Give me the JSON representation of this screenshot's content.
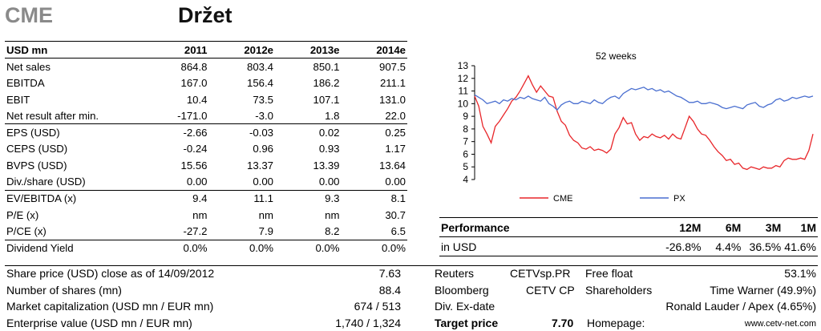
{
  "header": {
    "ticker": "CME",
    "rating": "Držet"
  },
  "financials": {
    "columns": [
      "USD mn",
      "2011",
      "2012e",
      "2013e",
      "2014e"
    ],
    "groups": [
      [
        [
          "Net sales",
          "864.8",
          "803.4",
          "850.1",
          "907.5"
        ],
        [
          "EBITDA",
          "167.0",
          "156.4",
          "186.2",
          "211.1"
        ],
        [
          "EBIT",
          "10.4",
          "73.5",
          "107.1",
          "131.0"
        ],
        [
          "Net result after min.",
          "-171.0",
          "-3.0",
          "1.8",
          "22.0"
        ]
      ],
      [
        [
          "EPS (USD)",
          "-2.66",
          "-0.03",
          "0.02",
          "0.25"
        ],
        [
          "CEPS (USD)",
          "-0.24",
          "0.96",
          "0.93",
          "1.17"
        ],
        [
          "BVPS (USD)",
          "15.56",
          "13.37",
          "13.39",
          "13.64"
        ],
        [
          "Div./share (USD)",
          "0.00",
          "0.00",
          "0.00",
          "0.00"
        ]
      ],
      [
        [
          "EV/EBITDA (x)",
          "9.4",
          "11.1",
          "9.3",
          "8.1"
        ],
        [
          "P/E (x)",
          "nm",
          "nm",
          "nm",
          "30.7"
        ],
        [
          "P/CE (x)",
          "-27.2",
          "7.9",
          "8.2",
          "6.5"
        ]
      ],
      [
        [
          "Dividend Yield",
          "0.0%",
          "0.0%",
          "0.0%",
          "0.0%"
        ]
      ]
    ]
  },
  "chart_data": {
    "type": "line",
    "title": "52 weeks",
    "ylim": [
      4,
      13
    ],
    "yticks": [
      "4",
      "5",
      "6",
      "7",
      "8",
      "9",
      "10",
      "11",
      "12",
      "13"
    ],
    "series": [
      {
        "name": "CME",
        "color": "#e8262a",
        "values": [
          10.6,
          9.8,
          8.2,
          7.6,
          6.9,
          8.2,
          8.6,
          9.1,
          9.6,
          10.2,
          10.5,
          11.0,
          11.6,
          12.2,
          11.5,
          10.9,
          11.4,
          11.0,
          10.6,
          10.5,
          9.4,
          8.6,
          8.3,
          7.5,
          7.1,
          6.9,
          6.5,
          6.4,
          6.6,
          6.3,
          6.4,
          6.3,
          6.1,
          6.4,
          7.6,
          8.1,
          8.9,
          8.4,
          8.5,
          7.6,
          7.1,
          7.4,
          7.3,
          7.6,
          7.4,
          7.3,
          7.5,
          7.2,
          7.6,
          7.3,
          7.2,
          8.1,
          9.0,
          8.6,
          8.0,
          7.6,
          7.5,
          7.1,
          6.6,
          6.2,
          5.9,
          5.5,
          5.6,
          5.2,
          5.3,
          4.9,
          4.8,
          5.0,
          4.9,
          4.8,
          5.0,
          4.9,
          4.9,
          5.1,
          5.0,
          5.5,
          5.7,
          5.6,
          5.6,
          5.7,
          5.6,
          6.3,
          7.6
        ]
      },
      {
        "name": "PX",
        "color": "#4a6fd0",
        "values": [
          10.7,
          10.5,
          10.3,
          10.0,
          10.1,
          10.2,
          10.0,
          10.3,
          10.2,
          10.4,
          10.3,
          10.5,
          10.4,
          10.6,
          10.4,
          10.3,
          10.2,
          10.5,
          10.0,
          9.8,
          9.5,
          9.9,
          10.1,
          10.2,
          10.0,
          10.0,
          10.2,
          10.1,
          10.0,
          10.3,
          10.1,
          10.0,
          10.3,
          10.5,
          10.6,
          10.4,
          10.8,
          11.0,
          11.2,
          11.1,
          11.2,
          11.3,
          11.1,
          11.2,
          11.0,
          11.1,
          10.9,
          11.0,
          10.8,
          10.6,
          10.5,
          10.3,
          10.1,
          10.1,
          10.2,
          10.0,
          10.0,
          10.1,
          10.0,
          9.9,
          9.7,
          9.6,
          9.7,
          9.8,
          9.7,
          9.6,
          9.9,
          10.0,
          10.1,
          9.8,
          9.7,
          9.9,
          10.0,
          10.3,
          10.4,
          10.2,
          10.3,
          10.5,
          10.4,
          10.5,
          10.6,
          10.5,
          10.6
        ]
      }
    ]
  },
  "performance": {
    "headers": [
      "Performance",
      "12M",
      "6M",
      "3M",
      "1M"
    ],
    "row": [
      "in USD",
      "-26.8%",
      "4.4%",
      "36.5%",
      "41.6%"
    ]
  },
  "bottom": {
    "share_price_label": "Share price (USD) close as of 14/09/2012",
    "share_price_value": "7.63",
    "shares_label": "Number of shares (mn)",
    "shares_value": "88.4",
    "mcap_label": "Market capitalization (USD mn / EUR mn)",
    "mcap_value": "674 / 513",
    "ev_label": "Enterprise value (USD mn / EUR mn)",
    "ev_value": "1,740 / 1,324",
    "reuters_label": "Reuters",
    "reuters_value": "CETVsp.PR",
    "bloomberg_label": "Bloomberg",
    "bloomberg_value": "CETV CP",
    "divex_label": "Div. Ex-date",
    "target_label": "Target price",
    "target_value": "7.70",
    "freefloat_label": "Free float",
    "freefloat_value": "53.1%",
    "shareholders_label": "Shareholders",
    "shareholder_1": "Time Warner (49.9%)",
    "shareholder_2": "Ronald Lauder / Apex (4.65%)",
    "homepage_label": "Homepage:",
    "homepage_value": "www.cetv-net.com"
  }
}
